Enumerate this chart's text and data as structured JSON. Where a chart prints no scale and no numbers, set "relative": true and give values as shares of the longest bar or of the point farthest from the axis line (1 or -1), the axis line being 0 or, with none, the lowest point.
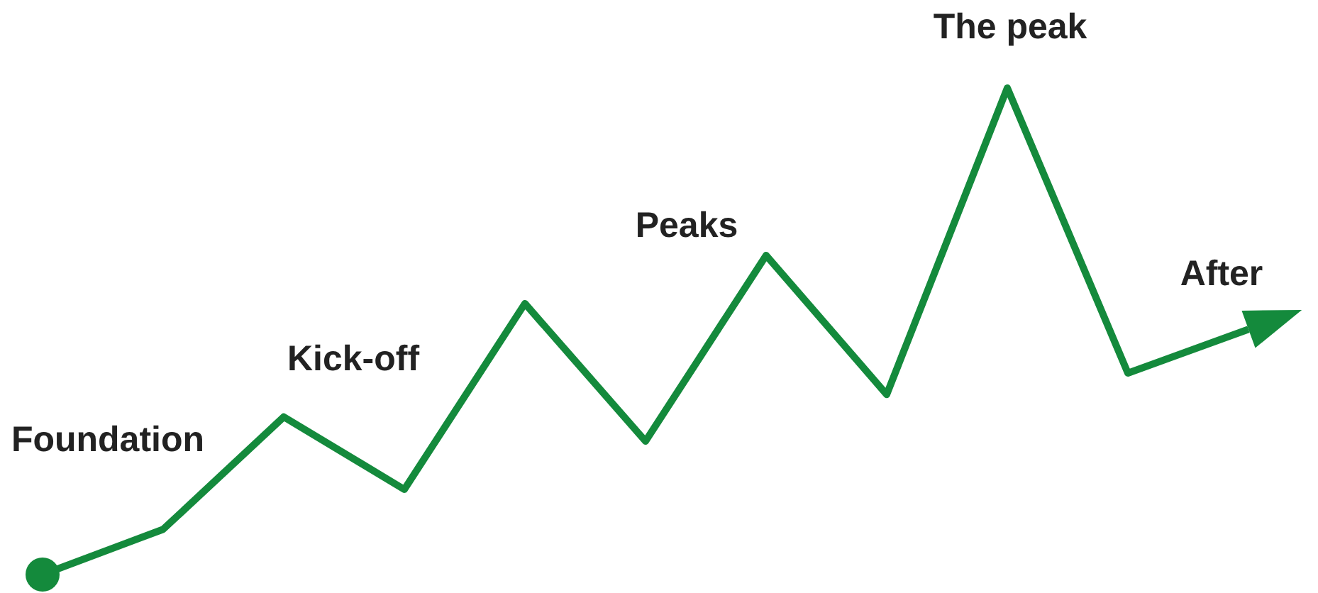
{
  "chart_data": {
    "type": "line",
    "relative": true,
    "categories": [
      null,
      null,
      null,
      null,
      null,
      null,
      null,
      null,
      null,
      null,
      null
    ],
    "series": [
      {
        "color": "#148a3c",
        "values": [
          0,
          0.093,
          0.324,
          0.175,
          0.557,
          0.274,
          0.656,
          0.37,
          1,
          0.414,
          0.504
        ]
      }
    ],
    "marker": "none",
    "line_style": "solid",
    "annotations": [
      "Foundation",
      "Kick-off",
      "Peaks",
      "The peak",
      "After"
    ]
  }
}
